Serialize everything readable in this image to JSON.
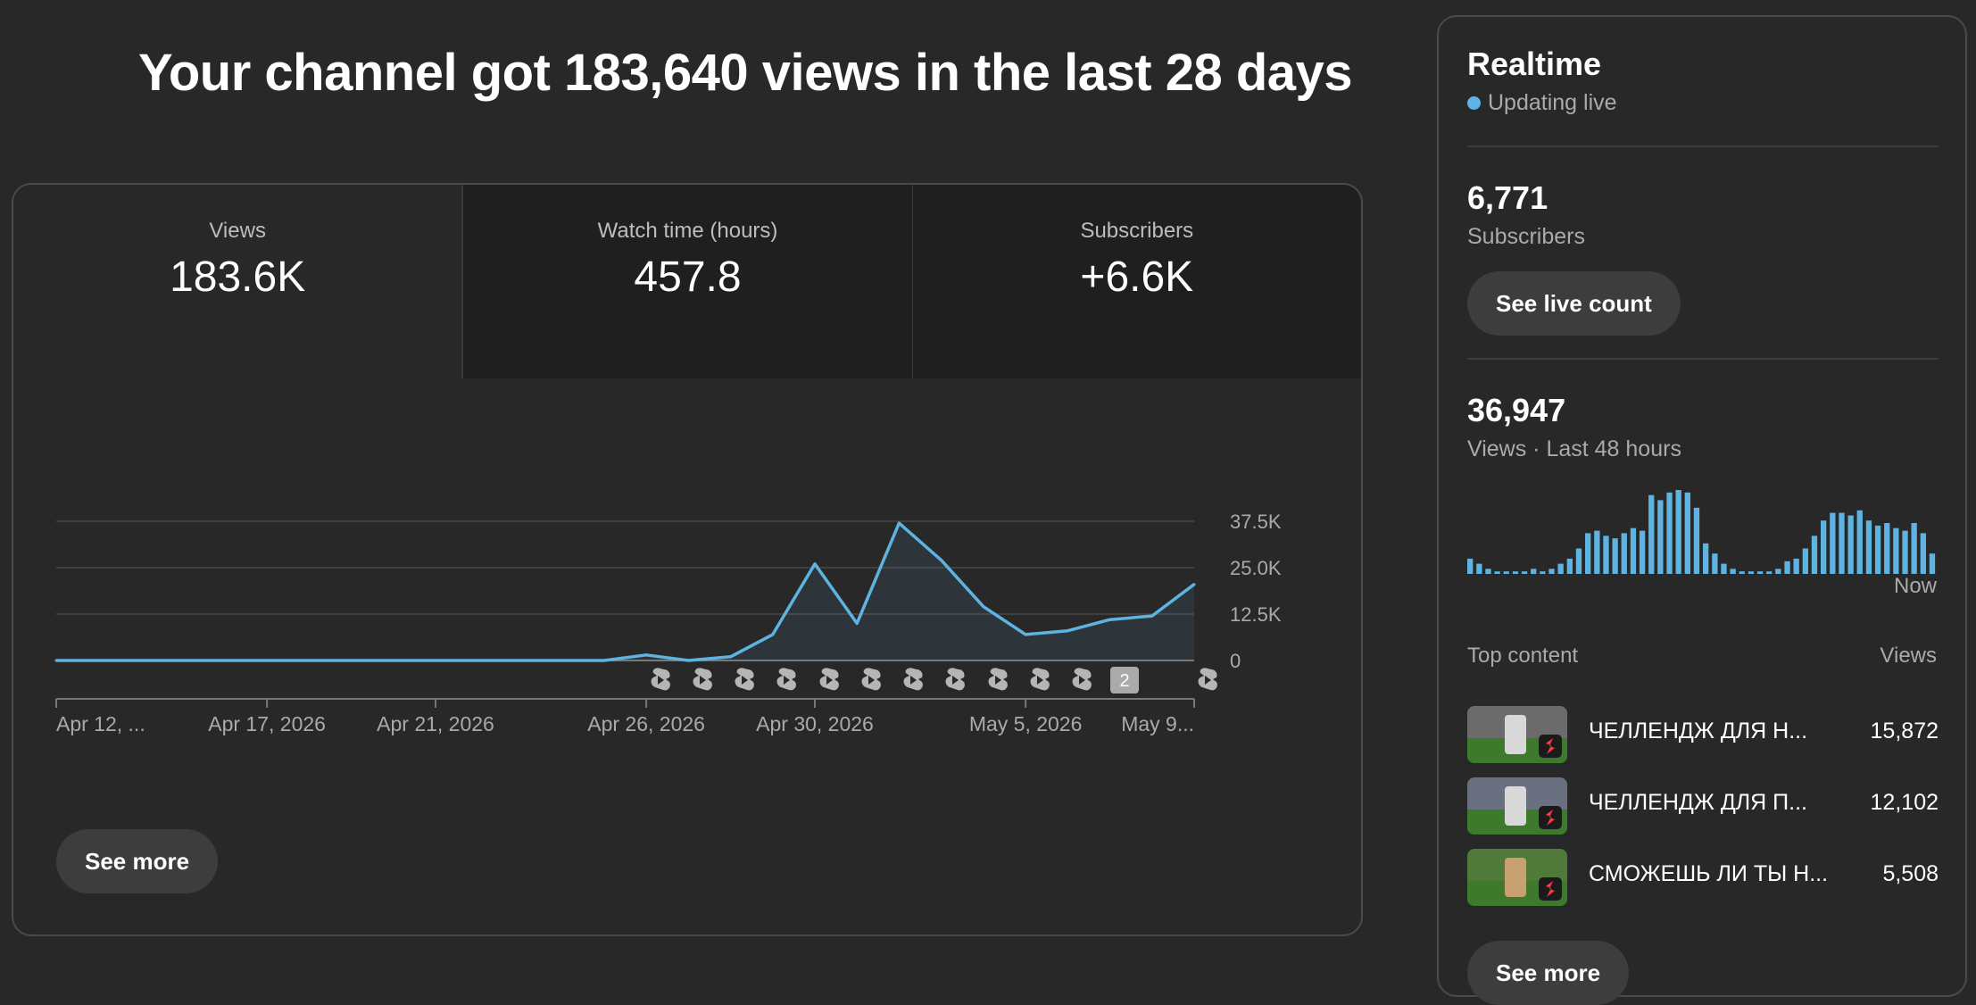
{
  "headline": "Your channel got 183,640 views in the last 28 days",
  "tabs": [
    {
      "label": "Views",
      "value": "183.6K"
    },
    {
      "label": "Watch time (hours)",
      "value": "457.8"
    },
    {
      "label": "Subscribers",
      "value": "+6.6K"
    }
  ],
  "see_more": "See more",
  "chart_data": {
    "type": "area",
    "series": [
      {
        "values": [
          0,
          0,
          0,
          0,
          0,
          0,
          0,
          0,
          0,
          0,
          0,
          0,
          0,
          0,
          1500,
          0,
          1000,
          7000,
          26000,
          10000,
          37000,
          27000,
          14500,
          7000,
          8000,
          11000,
          12000,
          20500
        ]
      }
    ],
    "y_ticks": [
      "37.5K",
      "25.0K",
      "12.5K",
      "0"
    ],
    "x_tick_labels": [
      "Apr 12, ...",
      "Apr 17, 2026",
      "Apr 21, 2026",
      "Apr 26, 2026",
      "Apr 30, 2026",
      "May 5, 2026",
      "May 9..."
    ],
    "ylim": [
      0,
      37500
    ],
    "color": "#5fb3e0",
    "upload_marker_badge": "2"
  },
  "realtime": {
    "title": "Realtime",
    "status": "Updating live",
    "subscribers_value": "6,771",
    "subscribers_label": "Subscribers",
    "live_count_button": "See live count",
    "views_value": "36,947",
    "views_label": "Views · Last 48 hours",
    "now_label": "Now",
    "hourly_views": [
      6,
      4,
      2,
      1,
      1,
      1,
      1,
      2,
      1,
      2,
      4,
      6,
      10,
      16,
      17,
      15,
      14,
      16,
      18,
      17,
      31,
      29,
      32,
      33,
      32,
      26,
      12,
      8,
      4,
      2,
      1,
      1,
      1,
      1,
      2,
      5,
      6,
      10,
      15,
      21,
      24,
      24,
      23,
      25,
      21,
      19,
      20,
      18,
      17,
      20,
      16,
      8
    ]
  },
  "top_content": {
    "header": "Top content",
    "views_header": "Views",
    "items": [
      {
        "title": "ЧЕЛЛЕНДЖ ДЛЯ Н...",
        "views": "15,872"
      },
      {
        "title": "ЧЕЛЛЕНДЖ ДЛЯ П...",
        "views": "12,102"
      },
      {
        "title": "СМОЖЕШЬ ЛИ ТЫ Н...",
        "views": "5,508"
      }
    ],
    "see_more": "See more"
  }
}
